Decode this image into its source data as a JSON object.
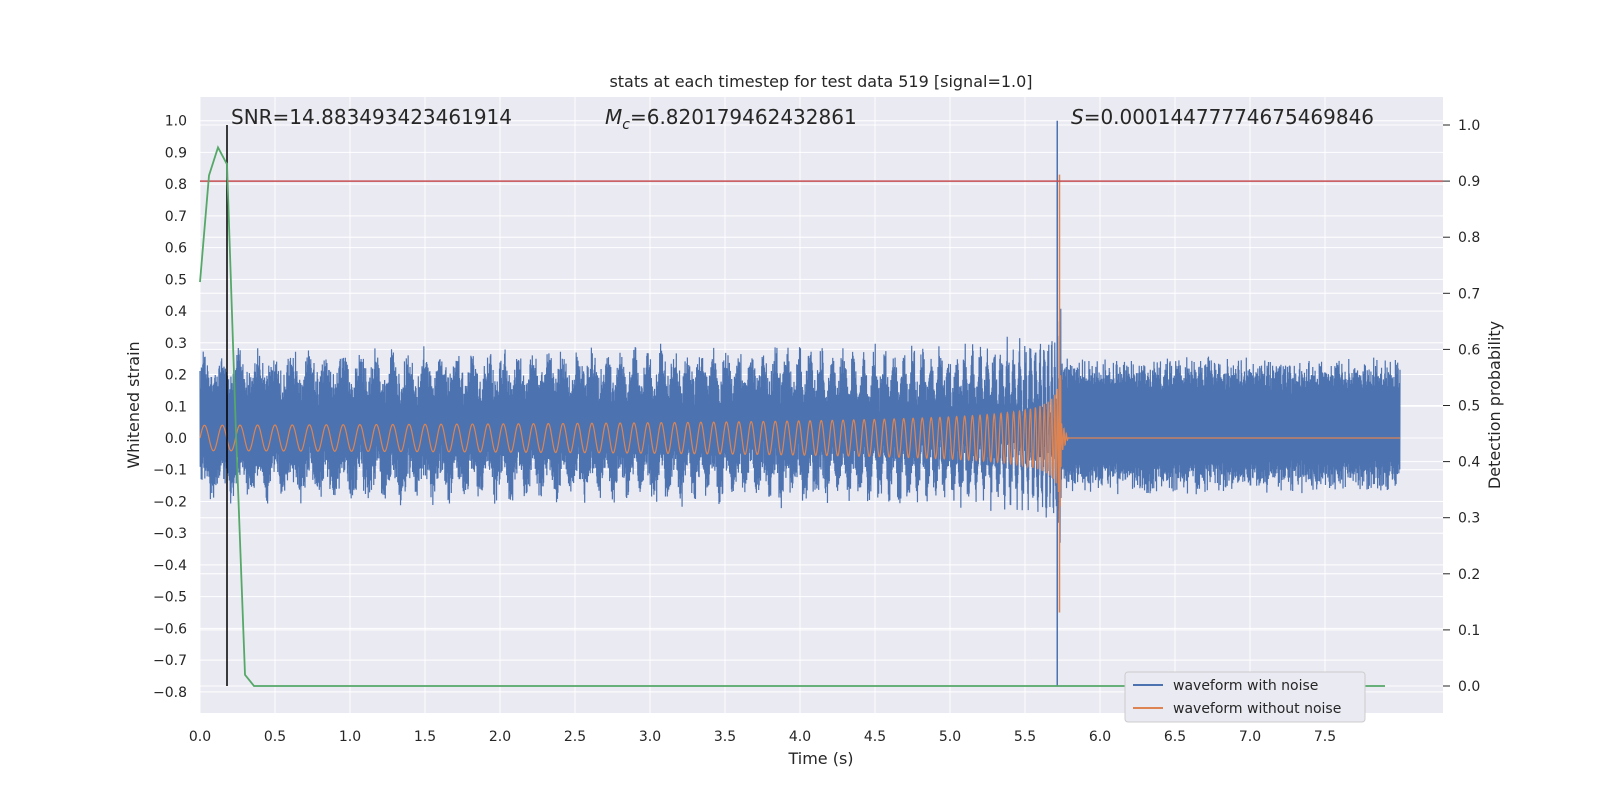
{
  "chart_data": {
    "type": "line",
    "title": "stats at each timestep for test data 519 [signal=1.0]",
    "xlabel": "Time (s)",
    "ylabel": "Whitened strain",
    "y2label": "Detection probability",
    "xlim": [
      0.0,
      8.0
    ],
    "ylim": [
      -0.85,
      1.08
    ],
    "y2lim": [
      -0.05,
      1.04
    ],
    "xticks": [
      "0.0",
      "0.5",
      "1.0",
      "1.5",
      "2.0",
      "2.5",
      "3.0",
      "3.5",
      "4.0",
      "4.5",
      "5.0",
      "5.5",
      "6.0",
      "6.5",
      "7.0",
      "7.5"
    ],
    "yticks": [
      "1.0",
      "0.9",
      "0.8",
      "0.7",
      "0.6",
      "0.5",
      "0.4",
      "0.3",
      "0.2",
      "0.1",
      "0.0",
      "−0.1",
      "−0.2",
      "−0.3",
      "−0.4",
      "−0.5",
      "−0.6",
      "−0.7",
      "−0.8"
    ],
    "y2ticks": [
      "1.0",
      "0.9",
      "0.8",
      "0.7",
      "0.6",
      "0.5",
      "0.4",
      "0.3",
      "0.2",
      "0.1",
      "0.0"
    ],
    "grid": true,
    "legend_placement": "lower-right",
    "annotations": {
      "snr": "SNR=14.883493423461914",
      "mc_prefix": "M",
      "mc_sub": "c",
      "mc_value": "=6.820179462432861",
      "s_prefix": "S",
      "s_value": "=0.00014477774675469846"
    },
    "colors": {
      "noisy": "#4c72b0",
      "clean": "#dd8452",
      "probability": "#55a868",
      "threshold": "#c44e52",
      "marker": "#000000",
      "background": "#eaeaf2",
      "grid": "#ffffff"
    },
    "series": [
      {
        "name": "waveform with noise",
        "noise_amplitude": 0.22,
        "peak": 1.0
      },
      {
        "name": "waveform without noise",
        "merger_time": 5.74,
        "start_amplitude": 0.04,
        "peak": 0.83
      },
      {
        "name_hidden": "detection probability",
        "x": [
          0.0,
          0.06,
          0.12,
          0.18,
          0.24,
          0.3,
          0.36,
          0.42,
          1.0,
          2.0,
          3.0,
          4.0,
          5.0,
          6.0,
          7.0,
          7.9
        ],
        "y": [
          0.72,
          0.91,
          0.96,
          0.93,
          0.45,
          0.02,
          0.0,
          0.0,
          0.0,
          0.0,
          0.0,
          0.0,
          0.0,
          0.0,
          0.0,
          0.0
        ]
      }
    ],
    "threshold_line_y2": 0.9,
    "marker_line_x": 0.18
  },
  "legend": {
    "items": [
      {
        "label": "waveform with noise",
        "color": "#4c72b0"
      },
      {
        "label": "waveform without noise",
        "color": "#dd8452"
      }
    ]
  }
}
